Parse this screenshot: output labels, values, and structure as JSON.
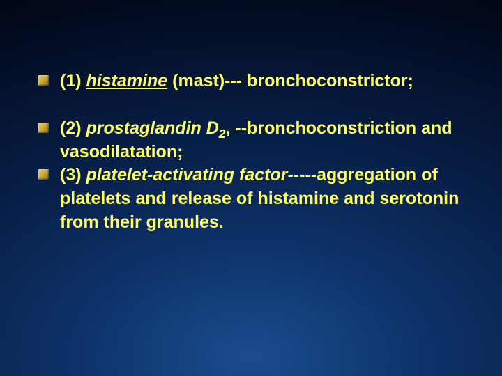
{
  "slide": {
    "background": {
      "gradient_type": "radial",
      "center_color": "#1a4d8f",
      "mid_color": "#071e45",
      "edge_color": "#000000"
    },
    "text_color": "#ffff66",
    "bullet_color": "#caa838",
    "font_family": "Arial",
    "font_size_pt": 25,
    "font_weight": "bold",
    "bullets": [
      {
        "parts": [
          {
            "text": "(1) "
          },
          {
            "text": "histamine",
            "italic": true,
            "underline": true
          },
          {
            "text": "  (mast)--- bronchoconstrictor;"
          }
        ],
        "spacing_after": true
      },
      {
        "parts": [
          {
            "text": " (2) "
          },
          {
            "text": "prostaglandin D",
            "italic": true
          },
          {
            "text": "2",
            "italic": true,
            "subscript": true
          },
          {
            "text": ", --bronchoconstriction and vasodilatation;"
          }
        ],
        "spacing_after": false
      },
      {
        "parts": [
          {
            "text": " (3) "
          },
          {
            "text": "platelet-activating factor",
            "italic": true
          },
          {
            "text": "-----aggregation of platelets and release of histamine and serotonin from their granules."
          }
        ],
        "spacing_after": false
      }
    ]
  }
}
